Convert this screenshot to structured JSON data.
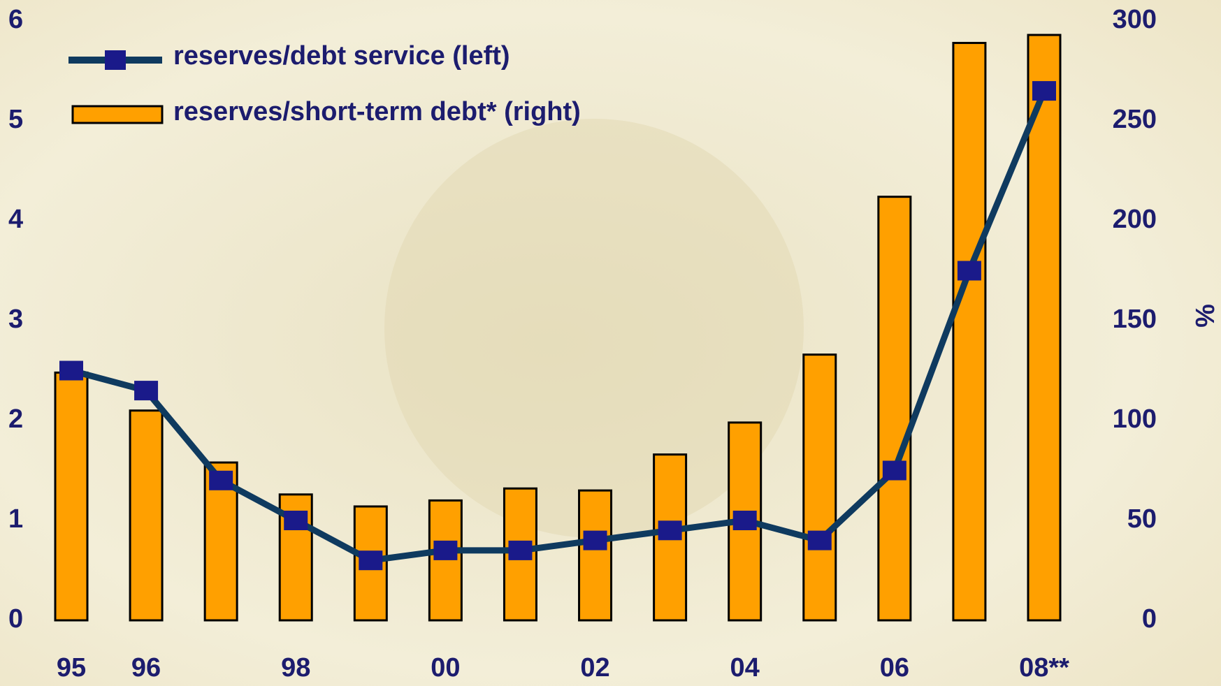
{
  "chart_data": {
    "type": "bar_line",
    "categories": [
      "95",
      "96",
      null,
      "98",
      null,
      "00",
      null,
      "02",
      null,
      "04",
      null,
      "06",
      null,
      "08**"
    ],
    "series": [
      {
        "name": "reserves/debt service (left)",
        "type": "line",
        "color": "#0f3a5f",
        "marker_color": "#1a1a8a",
        "axis": "y",
        "values": [
          2.5,
          2.3,
          1.4,
          1.0,
          0.6,
          0.7,
          0.7,
          0.8,
          0.9,
          1.0,
          0.8,
          1.5,
          3.5,
          5.3
        ]
      },
      {
        "name": "reserves/short-term debt* (right)",
        "type": "bar",
        "color": "#ffa000",
        "axis": "y2",
        "values": [
          124,
          105,
          79,
          63,
          57,
          60,
          66,
          65,
          83,
          99,
          133,
          212,
          289,
          293
        ]
      }
    ],
    "ylim": [
      0,
      6
    ],
    "yticks": [
      0,
      1,
      2,
      3,
      4,
      5,
      6
    ],
    "y2lim": [
      0,
      300
    ],
    "y2ticks": [
      0,
      50,
      100,
      150,
      200,
      250,
      300
    ],
    "y2label": "%"
  }
}
